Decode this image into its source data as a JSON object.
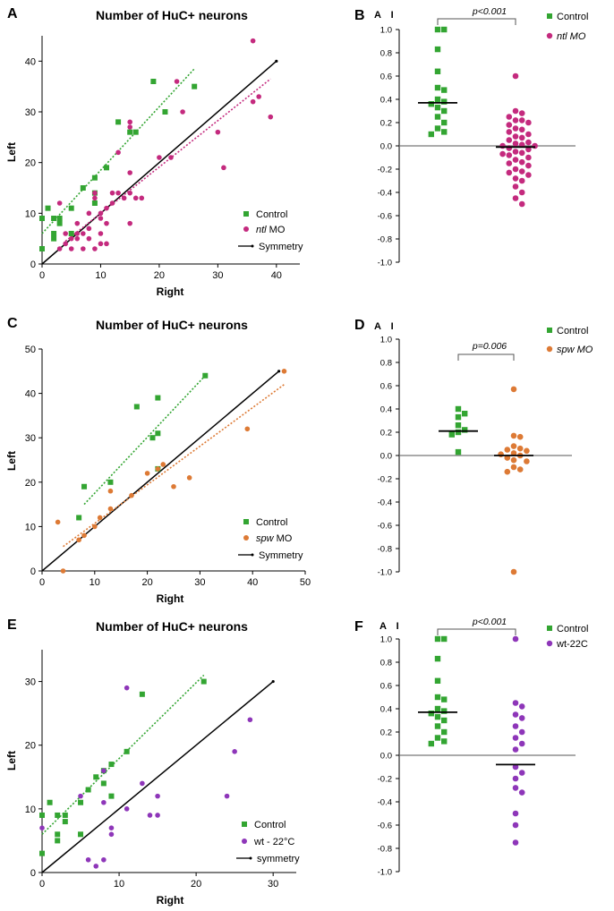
{
  "figure": {
    "panel_labels": [
      "A",
      "B",
      "C",
      "D",
      "E",
      "F"
    ]
  },
  "chart_data": [
    {
      "id": "A",
      "type": "scatter",
      "title": "Number of HuC+ neurons",
      "xlabel": "Right",
      "ylabel": "Left",
      "xlim": [
        0,
        44
      ],
      "ylim": [
        0,
        45
      ],
      "xticks": [
        0,
        10,
        20,
        30,
        40
      ],
      "yticks": [
        0,
        10,
        20,
        30,
        40
      ],
      "legend_position": "bottom-right",
      "series": [
        {
          "name": "Control",
          "legend_label": "Control",
          "marker": "square",
          "color": "#33a532",
          "points": [
            [
              0,
              3
            ],
            [
              0,
              9
            ],
            [
              1,
              11
            ],
            [
              2,
              5
            ],
            [
              2,
              6
            ],
            [
              2,
              9
            ],
            [
              3,
              8
            ],
            [
              3,
              9
            ],
            [
              5,
              6
            ],
            [
              5,
              11
            ],
            [
              7,
              15
            ],
            [
              9,
              17
            ],
            [
              11,
              19
            ],
            [
              13,
              28
            ],
            [
              15,
              26
            ],
            [
              16,
              26
            ],
            [
              19,
              36
            ],
            [
              21,
              30
            ],
            [
              26,
              35
            ],
            [
              9,
              14
            ],
            [
              9,
              12
            ]
          ],
          "fit": [
            [
              0,
              6
            ],
            [
              26,
              38.5
            ]
          ]
        },
        {
          "name": "ntl MO",
          "legend_prefix": "ntl",
          "legend_suffix": " MO",
          "marker": "circle",
          "color": "#c42a7e",
          "points": [
            [
              3,
              3
            ],
            [
              3,
              12
            ],
            [
              4,
              6
            ],
            [
              5,
              3
            ],
            [
              6,
              5
            ],
            [
              6,
              6
            ],
            [
              7,
              3
            ],
            [
              7,
              6
            ],
            [
              8,
              5
            ],
            [
              8,
              7
            ],
            [
              9,
              3
            ],
            [
              9,
              13
            ],
            [
              9,
              14
            ],
            [
              10,
              4
            ],
            [
              10,
              6
            ],
            [
              10,
              9
            ],
            [
              10,
              10
            ],
            [
              11,
              4
            ],
            [
              11,
              8
            ],
            [
              12,
              12
            ],
            [
              12,
              14
            ],
            [
              13,
              14
            ],
            [
              13,
              22
            ],
            [
              14,
              13
            ],
            [
              15,
              8
            ],
            [
              15,
              14
            ],
            [
              15,
              18
            ],
            [
              15,
              27
            ],
            [
              15,
              28
            ],
            [
              16,
              13
            ],
            [
              17,
              13
            ],
            [
              20,
              21
            ],
            [
              22,
              21
            ],
            [
              23,
              36
            ],
            [
              24,
              30
            ],
            [
              30,
              26
            ],
            [
              31,
              19
            ],
            [
              36,
              32
            ],
            [
              36,
              44
            ],
            [
              37,
              33
            ],
            [
              39,
              29
            ],
            [
              4,
              4
            ],
            [
              6,
              8
            ],
            [
              8,
              10
            ],
            [
              11,
              11
            ],
            [
              5,
              5
            ]
          ],
          "fit": [
            [
              4,
              4.5
            ],
            [
              39,
              36.5
            ]
          ]
        },
        {
          "name": "Symmetry",
          "legend_label": "Symmetry",
          "color": "#000000",
          "line": [
            [
              0,
              0
            ],
            [
              40,
              40
            ]
          ]
        }
      ]
    },
    {
      "id": "B",
      "type": "scatter",
      "ylabel": "A I",
      "ylim": [
        -1.0,
        1.0
      ],
      "yticks": [
        1.0,
        0.8,
        0.6,
        0.4,
        0.2,
        0.0,
        -0.2,
        -0.4,
        -0.6,
        -0.8,
        -1.0
      ],
      "ytick_labels": [
        "1.0",
        "0.8",
        "0.6",
        "0.4",
        "0.2",
        "0.0",
        "-0.2",
        "-0.4",
        "-0.6",
        "-0.8",
        "-1.0"
      ],
      "p_value": "p<0.001",
      "legend_position": "top-right",
      "series": [
        {
          "name": "Control",
          "legend_label": "Control",
          "italic": false,
          "marker": "square",
          "color": "#33a532",
          "median": 0.37,
          "values": [
            1.0,
            1.0,
            0.83,
            0.64,
            0.5,
            0.48,
            0.4,
            0.38,
            0.36,
            0.33,
            0.3,
            0.25,
            0.2,
            0.15,
            0.12,
            0.1
          ]
        },
        {
          "name": "ntl MO",
          "legend_label": "ntl MO",
          "italic": true,
          "marker": "circle",
          "color": "#c42a7e",
          "median": -0.01,
          "values": [
            0.6,
            0.3,
            0.28,
            0.25,
            0.22,
            0.2,
            0.18,
            0.15,
            0.12,
            0.1,
            0.08,
            0.05,
            0.03,
            0.02,
            0.0,
            0.0,
            -0.02,
            -0.03,
            -0.05,
            -0.06,
            -0.08,
            -0.1,
            -0.12,
            -0.15,
            -0.17,
            -0.2,
            -0.22,
            -0.25,
            -0.28,
            -0.3,
            -0.35,
            -0.4,
            -0.45,
            -0.5,
            0.07,
            -0.07,
            0.14,
            -0.14,
            0.22,
            -0.23,
            0.01
          ]
        }
      ]
    },
    {
      "id": "C",
      "type": "scatter",
      "title": "Number of HuC+ neurons",
      "xlabel": "Right",
      "ylabel": "Left",
      "xlim": [
        0,
        50
      ],
      "ylim": [
        0,
        50
      ],
      "xticks": [
        0,
        10,
        20,
        30,
        40,
        50
      ],
      "yticks": [
        0,
        10,
        20,
        30,
        40,
        50
      ],
      "legend_position": "bottom-right",
      "series": [
        {
          "name": "Control",
          "legend_label": "Control",
          "marker": "square",
          "color": "#33a532",
          "points": [
            [
              7,
              12
            ],
            [
              8,
              19
            ],
            [
              13,
              20
            ],
            [
              18,
              37
            ],
            [
              21,
              30
            ],
            [
              22,
              23
            ],
            [
              22,
              31
            ],
            [
              22,
              39
            ],
            [
              31,
              44
            ]
          ],
          "fit": [
            [
              8,
              15
            ],
            [
              31,
              44
            ]
          ]
        },
        {
          "name": "spw MO",
          "legend_prefix": "spw",
          "legend_suffix": " MO",
          "marker": "circle",
          "color": "#dd7a35",
          "points": [
            [
              3,
              11
            ],
            [
              4,
              0
            ],
            [
              7,
              7
            ],
            [
              8,
              8
            ],
            [
              10,
              10
            ],
            [
              11,
              12
            ],
            [
              13,
              14
            ],
            [
              13,
              18
            ],
            [
              17,
              17
            ],
            [
              20,
              22
            ],
            [
              22,
              23
            ],
            [
              23,
              24
            ],
            [
              25,
              19
            ],
            [
              28,
              21
            ],
            [
              39,
              32
            ],
            [
              46,
              45
            ]
          ],
          "fit": [
            [
              4,
              5.5
            ],
            [
              46,
              42
            ]
          ]
        },
        {
          "name": "Symmetry",
          "legend_label": "Symmetry",
          "color": "#000000",
          "line": [
            [
              0,
              0
            ],
            [
              45,
              45
            ]
          ]
        }
      ]
    },
    {
      "id": "D",
      "type": "scatter",
      "ylabel": "A I",
      "ylim": [
        -1.0,
        1.0
      ],
      "yticks": [
        1.0,
        0.8,
        0.6,
        0.4,
        0.2,
        0.0,
        -0.2,
        -0.4,
        -0.6,
        -0.8,
        -1.0
      ],
      "ytick_labels": [
        "1.0",
        "0.8",
        "0.6",
        "0.4",
        "0.2",
        "0.0",
        "-0.2",
        "-0.4",
        "-0.6",
        "-0.8",
        "-1.0"
      ],
      "p_value": "p=0.006",
      "legend_position": "top-right",
      "series": [
        {
          "name": "Control",
          "legend_label": "Control",
          "italic": false,
          "marker": "square",
          "color": "#33a532",
          "median": 0.21,
          "values": [
            0.4,
            0.36,
            0.33,
            0.26,
            0.22,
            0.2,
            0.18,
            0.03
          ]
        },
        {
          "name": "spw MO",
          "legend_label": "spw MO",
          "italic": true,
          "marker": "circle",
          "color": "#dd7a35",
          "median": 0.0,
          "values": [
            0.57,
            0.17,
            0.16,
            0.08,
            0.06,
            0.05,
            0.04,
            0.02,
            0.01,
            0.0,
            -0.02,
            -0.04,
            -0.05,
            -0.1,
            -0.12,
            -0.14,
            -1.0
          ]
        }
      ]
    },
    {
      "id": "E",
      "type": "scatter",
      "title": "Number of HuC+ neurons",
      "xlabel": "Right",
      "ylabel": "Left",
      "xlim": [
        0,
        33
      ],
      "ylim": [
        0,
        35
      ],
      "xticks": [
        0,
        10,
        20,
        30
      ],
      "yticks": [
        0,
        10,
        20,
        30
      ],
      "legend_position": "bottom-right",
      "series": [
        {
          "name": "Control",
          "legend_label": "Control",
          "marker": "square",
          "color": "#33a532",
          "points": [
            [
              0,
              3
            ],
            [
              0,
              9
            ],
            [
              1,
              11
            ],
            [
              2,
              5
            ],
            [
              2,
              6
            ],
            [
              2,
              9
            ],
            [
              3,
              8
            ],
            [
              3,
              9
            ],
            [
              5,
              6
            ],
            [
              5,
              11
            ],
            [
              6,
              13
            ],
            [
              7,
              15
            ],
            [
              8,
              14
            ],
            [
              8,
              16
            ],
            [
              9,
              12
            ],
            [
              9,
              17
            ],
            [
              11,
              19
            ],
            [
              13,
              28
            ],
            [
              21,
              30
            ]
          ],
          "fit": [
            [
              0,
              6
            ],
            [
              21,
              31
            ]
          ]
        },
        {
          "name": "wt - 22°C",
          "legend_label": "wt - 22°C",
          "marker": "circle",
          "color": "#8e36b9",
          "points": [
            [
              0,
              7
            ],
            [
              5,
              12
            ],
            [
              6,
              2
            ],
            [
              7,
              1
            ],
            [
              8,
              2
            ],
            [
              8,
              11
            ],
            [
              8,
              16
            ],
            [
              9,
              6
            ],
            [
              9,
              7
            ],
            [
              11,
              10
            ],
            [
              11,
              29
            ],
            [
              13,
              14
            ],
            [
              14,
              9
            ],
            [
              15,
              9
            ],
            [
              15,
              12
            ],
            [
              24,
              12
            ],
            [
              25,
              19
            ],
            [
              27,
              24
            ]
          ]
        },
        {
          "name": "symmetry",
          "legend_label": "symmetry",
          "color": "#000000",
          "line": [
            [
              0,
              0
            ],
            [
              30,
              30
            ]
          ]
        }
      ]
    },
    {
      "id": "F",
      "type": "scatter",
      "ylabel": "A I",
      "ylim": [
        -1.0,
        1.0
      ],
      "yticks": [
        1.0,
        0.8,
        0.6,
        0.4,
        0.2,
        0.0,
        -0.2,
        -0.4,
        -0.6,
        -0.8,
        -1.0
      ],
      "ytick_labels": [
        "1.0",
        "0.8",
        "0.6",
        "0.4",
        "0.2",
        "0.0",
        "-0.2",
        "-0.4",
        "-0.6",
        "-0.8",
        "-1.0"
      ],
      "p_value": "p<0.001",
      "legend_position": "top-right",
      "series": [
        {
          "name": "Control",
          "legend_label": "Control",
          "italic": false,
          "marker": "square",
          "color": "#33a532",
          "median": 0.37,
          "values": [
            1.0,
            1.0,
            0.83,
            0.64,
            0.5,
            0.48,
            0.4,
            0.38,
            0.36,
            0.33,
            0.3,
            0.25,
            0.2,
            0.15,
            0.12,
            0.1
          ]
        },
        {
          "name": "wt-22C",
          "legend_label": "wt-22C",
          "italic": false,
          "marker": "circle",
          "color": "#8e36b9",
          "median": -0.08,
          "values": [
            1.0,
            0.45,
            0.42,
            0.35,
            0.32,
            0.25,
            0.2,
            0.15,
            0.1,
            0.05,
            -0.1,
            -0.15,
            -0.2,
            -0.28,
            -0.32,
            -0.5,
            -0.6,
            -0.75
          ]
        }
      ]
    }
  ]
}
